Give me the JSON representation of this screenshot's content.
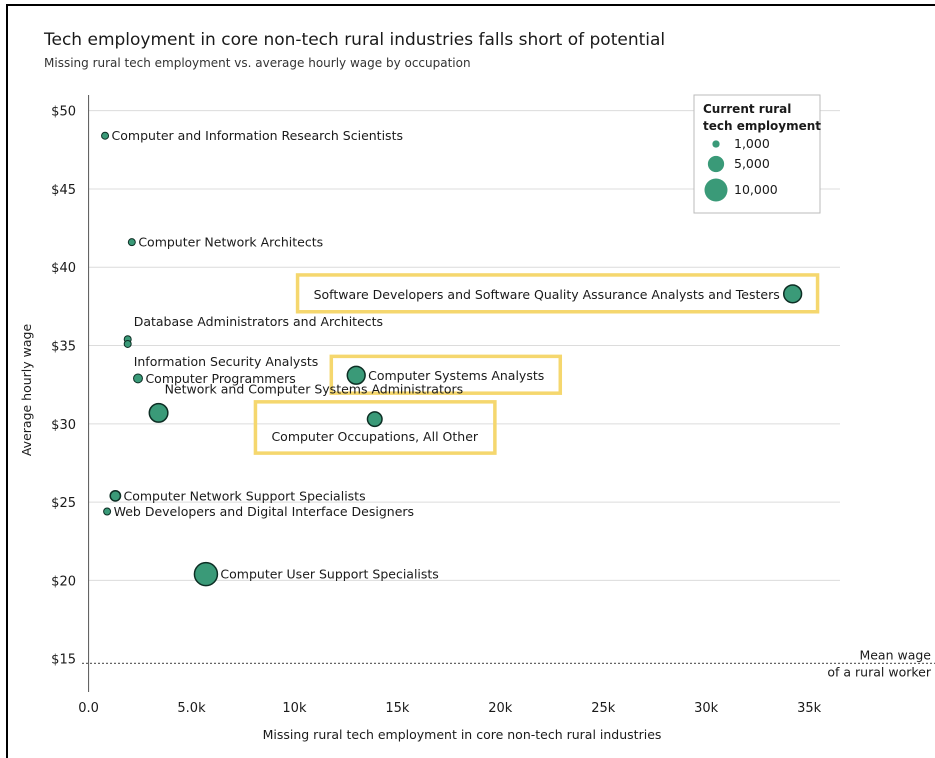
{
  "title": "Tech employment in core non-tech rural industries falls short of potential",
  "subtitle": "Missing rural tech employment vs. average hourly wage by occupation",
  "colors": {
    "marker": "#3a9a78",
    "marker_stroke": "#0d2e24",
    "highlight": "#f5d76e",
    "grid": "#dcdcdc",
    "text": "#1a1a1a"
  },
  "chart_data": {
    "type": "scatter",
    "xlabel": "Missing rural tech employment in core non-tech rural industries",
    "ylabel": "Average hourly wage",
    "xlim": [
      -1000,
      36500
    ],
    "ylim": [
      13,
      51
    ],
    "x_ticks": [
      {
        "value": 0,
        "label": "0.0"
      },
      {
        "value": 5000,
        "label": "5.0k"
      },
      {
        "value": 10000,
        "label": "10k"
      },
      {
        "value": 15000,
        "label": "15k"
      },
      {
        "value": 20000,
        "label": "20k"
      },
      {
        "value": 25000,
        "label": "25k"
      },
      {
        "value": 30000,
        "label": "30k"
      },
      {
        "value": 35000,
        "label": "35k"
      }
    ],
    "y_ticks": [
      {
        "value": 15,
        "label": "$15"
      },
      {
        "value": 20,
        "label": "$20"
      },
      {
        "value": 25,
        "label": "$25"
      },
      {
        "value": 30,
        "label": "$30"
      },
      {
        "value": 35,
        "label": "$35"
      },
      {
        "value": 40,
        "label": "$40"
      },
      {
        "value": 45,
        "label": "$45"
      },
      {
        "value": 50,
        "label": "$50"
      }
    ],
    "grid": true,
    "reference_line": {
      "y": 14.7,
      "label_lines": [
        "Mean wage",
        "of a rural worker"
      ]
    },
    "legend": {
      "title_lines": [
        "Current rural",
        "tech employment"
      ],
      "placement": "top-right",
      "entries": [
        {
          "label": "1,000",
          "value": 1000
        },
        {
          "label": "5,000",
          "value": 5000
        },
        {
          "label": "10,000",
          "value": 10000
        }
      ]
    },
    "points": [
      {
        "label": "Computer and Information Research Scientists",
        "x": 800,
        "y": 48.4,
        "employment": 300,
        "label_pos": "right",
        "highlight": false
      },
      {
        "label": "Computer Network Architects",
        "x": 2100,
        "y": 41.6,
        "employment": 800,
        "label_pos": "right",
        "highlight": false
      },
      {
        "label": "Software Developers and Software Quality Assurance Analysts and Testers",
        "x": 34200,
        "y": 38.3,
        "employment": 6000,
        "label_pos": "left",
        "highlight": true
      },
      {
        "label": "Database Administrators and Architects",
        "x": 1900,
        "y": 35.4,
        "employment": 500,
        "label_pos": "above-right",
        "highlight": false
      },
      {
        "label": "Information Security Analysts",
        "x": 1900,
        "y": 35.1,
        "employment": 500,
        "label_pos": "below-right",
        "highlight": false
      },
      {
        "label": "Computer Systems Analysts",
        "x": 13000,
        "y": 33.1,
        "employment": 6000,
        "label_pos": "right",
        "highlight": true
      },
      {
        "label": "Computer Programmers",
        "x": 2400,
        "y": 32.9,
        "employment": 1500,
        "label_pos": "right",
        "highlight": false
      },
      {
        "label": "Network and Computer Systems Administrators",
        "x": 3400,
        "y": 30.7,
        "employment": 6500,
        "label_pos": "above-right",
        "highlight": false
      },
      {
        "label": "Computer Occupations, All Other",
        "x": 13900,
        "y": 30.3,
        "employment": 4000,
        "label_pos": "below",
        "highlight": true
      },
      {
        "label": "Computer Network Support Specialists",
        "x": 1300,
        "y": 25.4,
        "employment": 2000,
        "label_pos": "right",
        "highlight": false
      },
      {
        "label": "Web Developers and Digital Interface Designers",
        "x": 900,
        "y": 24.4,
        "employment": 300,
        "label_pos": "right",
        "highlight": false
      },
      {
        "label": "Computer User Support Specialists",
        "x": 5700,
        "y": 20.4,
        "employment": 10000,
        "label_pos": "right",
        "highlight": false
      }
    ]
  }
}
